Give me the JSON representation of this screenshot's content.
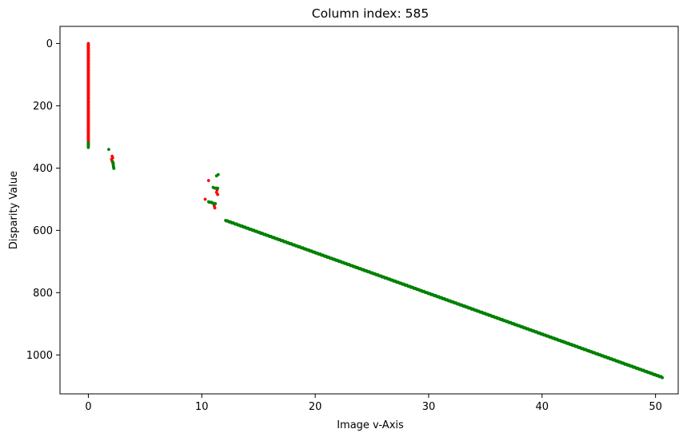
{
  "chart_data": {
    "type": "scatter",
    "title": "Column index: 585",
    "xlabel": "Image v-Axis",
    "ylabel": "Disparity Value",
    "xlim": [
      -2.5,
      52
    ],
    "ylim": [
      1125,
      -55
    ],
    "y_inverted": true,
    "grid": false,
    "x_ticks": [
      0,
      10,
      20,
      30,
      40,
      50
    ],
    "y_ticks": [
      0,
      200,
      400,
      600,
      800,
      1000
    ],
    "series": [
      {
        "color": "#ff0000",
        "segments": [
          {
            "x0": 0.0,
            "y0": 0,
            "x1": 0.0,
            "y1": 325,
            "n": 120
          }
        ],
        "points": [
          {
            "x": 2.05,
            "y": 372
          },
          {
            "x": 2.1,
            "y": 378
          },
          {
            "x": 2.15,
            "y": 367
          },
          {
            "x": 2.2,
            "y": 385
          },
          {
            "x": 2.1,
            "y": 362
          },
          {
            "x": 10.3,
            "y": 500
          },
          {
            "x": 10.6,
            "y": 440
          },
          {
            "x": 11.1,
            "y": 522
          },
          {
            "x": 11.15,
            "y": 528
          },
          {
            "x": 11.3,
            "y": 478
          },
          {
            "x": 11.4,
            "y": 485
          },
          {
            "x": 11.35,
            "y": 470
          }
        ]
      },
      {
        "color": "#008000",
        "segments": [
          {
            "x0": 0.0,
            "y0": 318,
            "x1": 0.0,
            "y1": 333,
            "n": 6
          },
          {
            "x0": 2.15,
            "y0": 380,
            "x1": 2.25,
            "y1": 402,
            "n": 8
          },
          {
            "x0": 10.6,
            "y0": 508,
            "x1": 11.2,
            "y1": 515,
            "n": 8
          },
          {
            "x0": 11.0,
            "y0": 462,
            "x1": 11.4,
            "y1": 466,
            "n": 4
          },
          {
            "x0": 12.1,
            "y0": 568,
            "x1": 50.6,
            "y1": 1072,
            "n": 560
          }
        ],
        "points": [
          {
            "x": 1.8,
            "y": 340
          },
          {
            "x": 11.3,
            "y": 425
          },
          {
            "x": 11.45,
            "y": 421
          }
        ]
      }
    ]
  }
}
